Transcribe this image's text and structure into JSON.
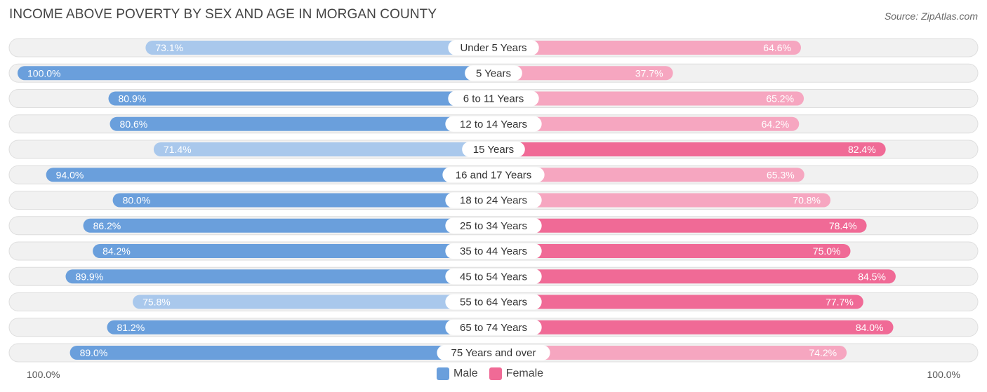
{
  "chart_data": {
    "type": "bar",
    "orientation": "diverging-horizontal",
    "title": "INCOME ABOVE POVERTY BY SEX AND AGE IN MORGAN COUNTY",
    "source": "Source: ZipAtlas.com",
    "categories": [
      "Under 5 Years",
      "5 Years",
      "6 to 11 Years",
      "12 to 14 Years",
      "15 Years",
      "16 and 17 Years",
      "18 to 24 Years",
      "25 to 34 Years",
      "35 to 44 Years",
      "45 to 54 Years",
      "55 to 64 Years",
      "65 to 74 Years",
      "75 Years and over"
    ],
    "series": [
      {
        "name": "Male",
        "values": [
          73.1,
          100.0,
          80.9,
          80.6,
          71.4,
          94.0,
          80.0,
          86.2,
          84.2,
          89.9,
          75.8,
          81.2,
          89.0
        ],
        "labels": [
          "73.1%",
          "100.0%",
          "80.9%",
          "80.6%",
          "71.4%",
          "94.0%",
          "80.0%",
          "86.2%",
          "84.2%",
          "89.9%",
          "75.8%",
          "81.2%",
          "89.0%"
        ]
      },
      {
        "name": "Female",
        "values": [
          64.6,
          37.7,
          65.2,
          64.2,
          82.4,
          65.3,
          70.8,
          78.4,
          75.0,
          84.5,
          77.7,
          84.0,
          74.2
        ],
        "labels": [
          "64.6%",
          "37.7%",
          "65.2%",
          "64.2%",
          "82.4%",
          "65.3%",
          "70.8%",
          "78.4%",
          "75.0%",
          "84.5%",
          "77.7%",
          "84.0%",
          "74.2%"
        ]
      }
    ],
    "xlim": [
      0,
      100
    ],
    "axis_left_label": "100.0%",
    "axis_right_label": "100.0%",
    "legend": [
      "Male",
      "Female"
    ],
    "legend_position": "bottom-center"
  },
  "colors": {
    "male_strong": "#6a9fdc",
    "male_light": "#a9c8ec",
    "female_strong": "#f06a96",
    "female_light": "#f6a6c0"
  }
}
